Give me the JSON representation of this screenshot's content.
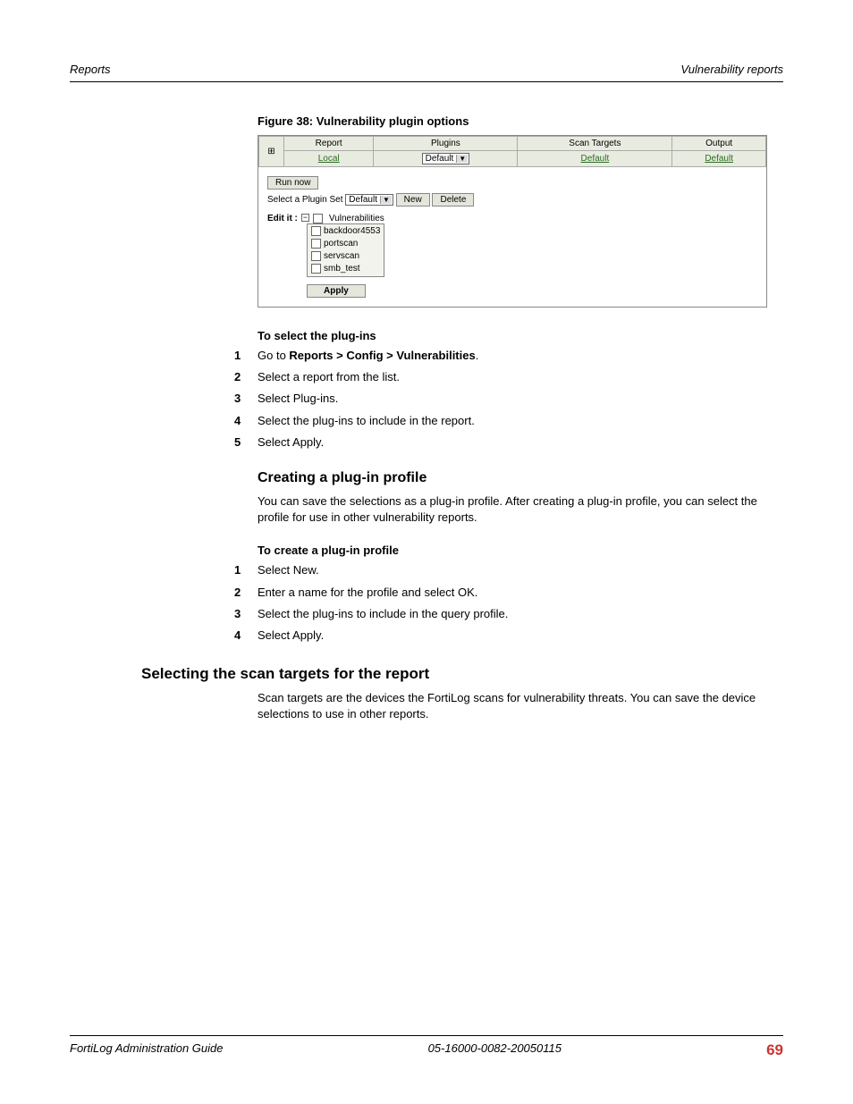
{
  "header": {
    "left": "Reports",
    "right": "Vulnerability reports"
  },
  "figure": {
    "caption": "Figure 38: Vulnerability plugin options",
    "table": {
      "headers": [
        "Report",
        "Plugins",
        "Scan Targets",
        "Output"
      ],
      "row": {
        "report": "Local",
        "plugins_selected": "Default",
        "scan_targets": "Default",
        "output": "Default"
      },
      "plus_symbol": "⊞"
    },
    "run_now": "Run now",
    "select_set_label": "Select a Plugin Set",
    "select_set_value": "Default",
    "new_btn": "New",
    "delete_btn": "Delete",
    "edit_label": "Edit it :",
    "tree_root": "Vulnerabilities",
    "tree_items": [
      "backdoor4553",
      "portscan",
      "servscan",
      "smb_test"
    ],
    "apply": "Apply"
  },
  "sections": {
    "select_plugins_heading": "To select the plug-ins",
    "steps_select": [
      {
        "n": "1",
        "text_pre": "Go to ",
        "bold": "Reports > Config > Vulnerabilities",
        "text_post": "."
      },
      {
        "n": "2",
        "text": "Select a report from the list."
      },
      {
        "n": "3",
        "text": "Select Plug-ins."
      },
      {
        "n": "4",
        "text": "Select the plug-ins to include in the report."
      },
      {
        "n": "5",
        "text": "Select Apply."
      }
    ],
    "creating_heading": "Creating a plug-in profile",
    "creating_para": "You can save the selections as a plug-in profile. After creating a plug-in profile, you can select the profile for use in other vulnerability reports.",
    "create_profile_heading": "To create a plug-in profile",
    "steps_create": [
      {
        "n": "1",
        "text": "Select New."
      },
      {
        "n": "2",
        "text": "Enter a name for the profile and select OK."
      },
      {
        "n": "3",
        "text": "Select the plug-ins to include in the query profile."
      },
      {
        "n": "4",
        "text": "Select Apply."
      }
    ],
    "selecting_targets_heading": "Selecting the scan targets for the report",
    "selecting_targets_para": "Scan targets are the devices the FortiLog scans for vulnerability threats. You can save the device selections to use in other reports."
  },
  "footer": {
    "left": "FortiLog Administration Guide",
    "center": "05-16000-0082-20050115",
    "page": "69"
  }
}
